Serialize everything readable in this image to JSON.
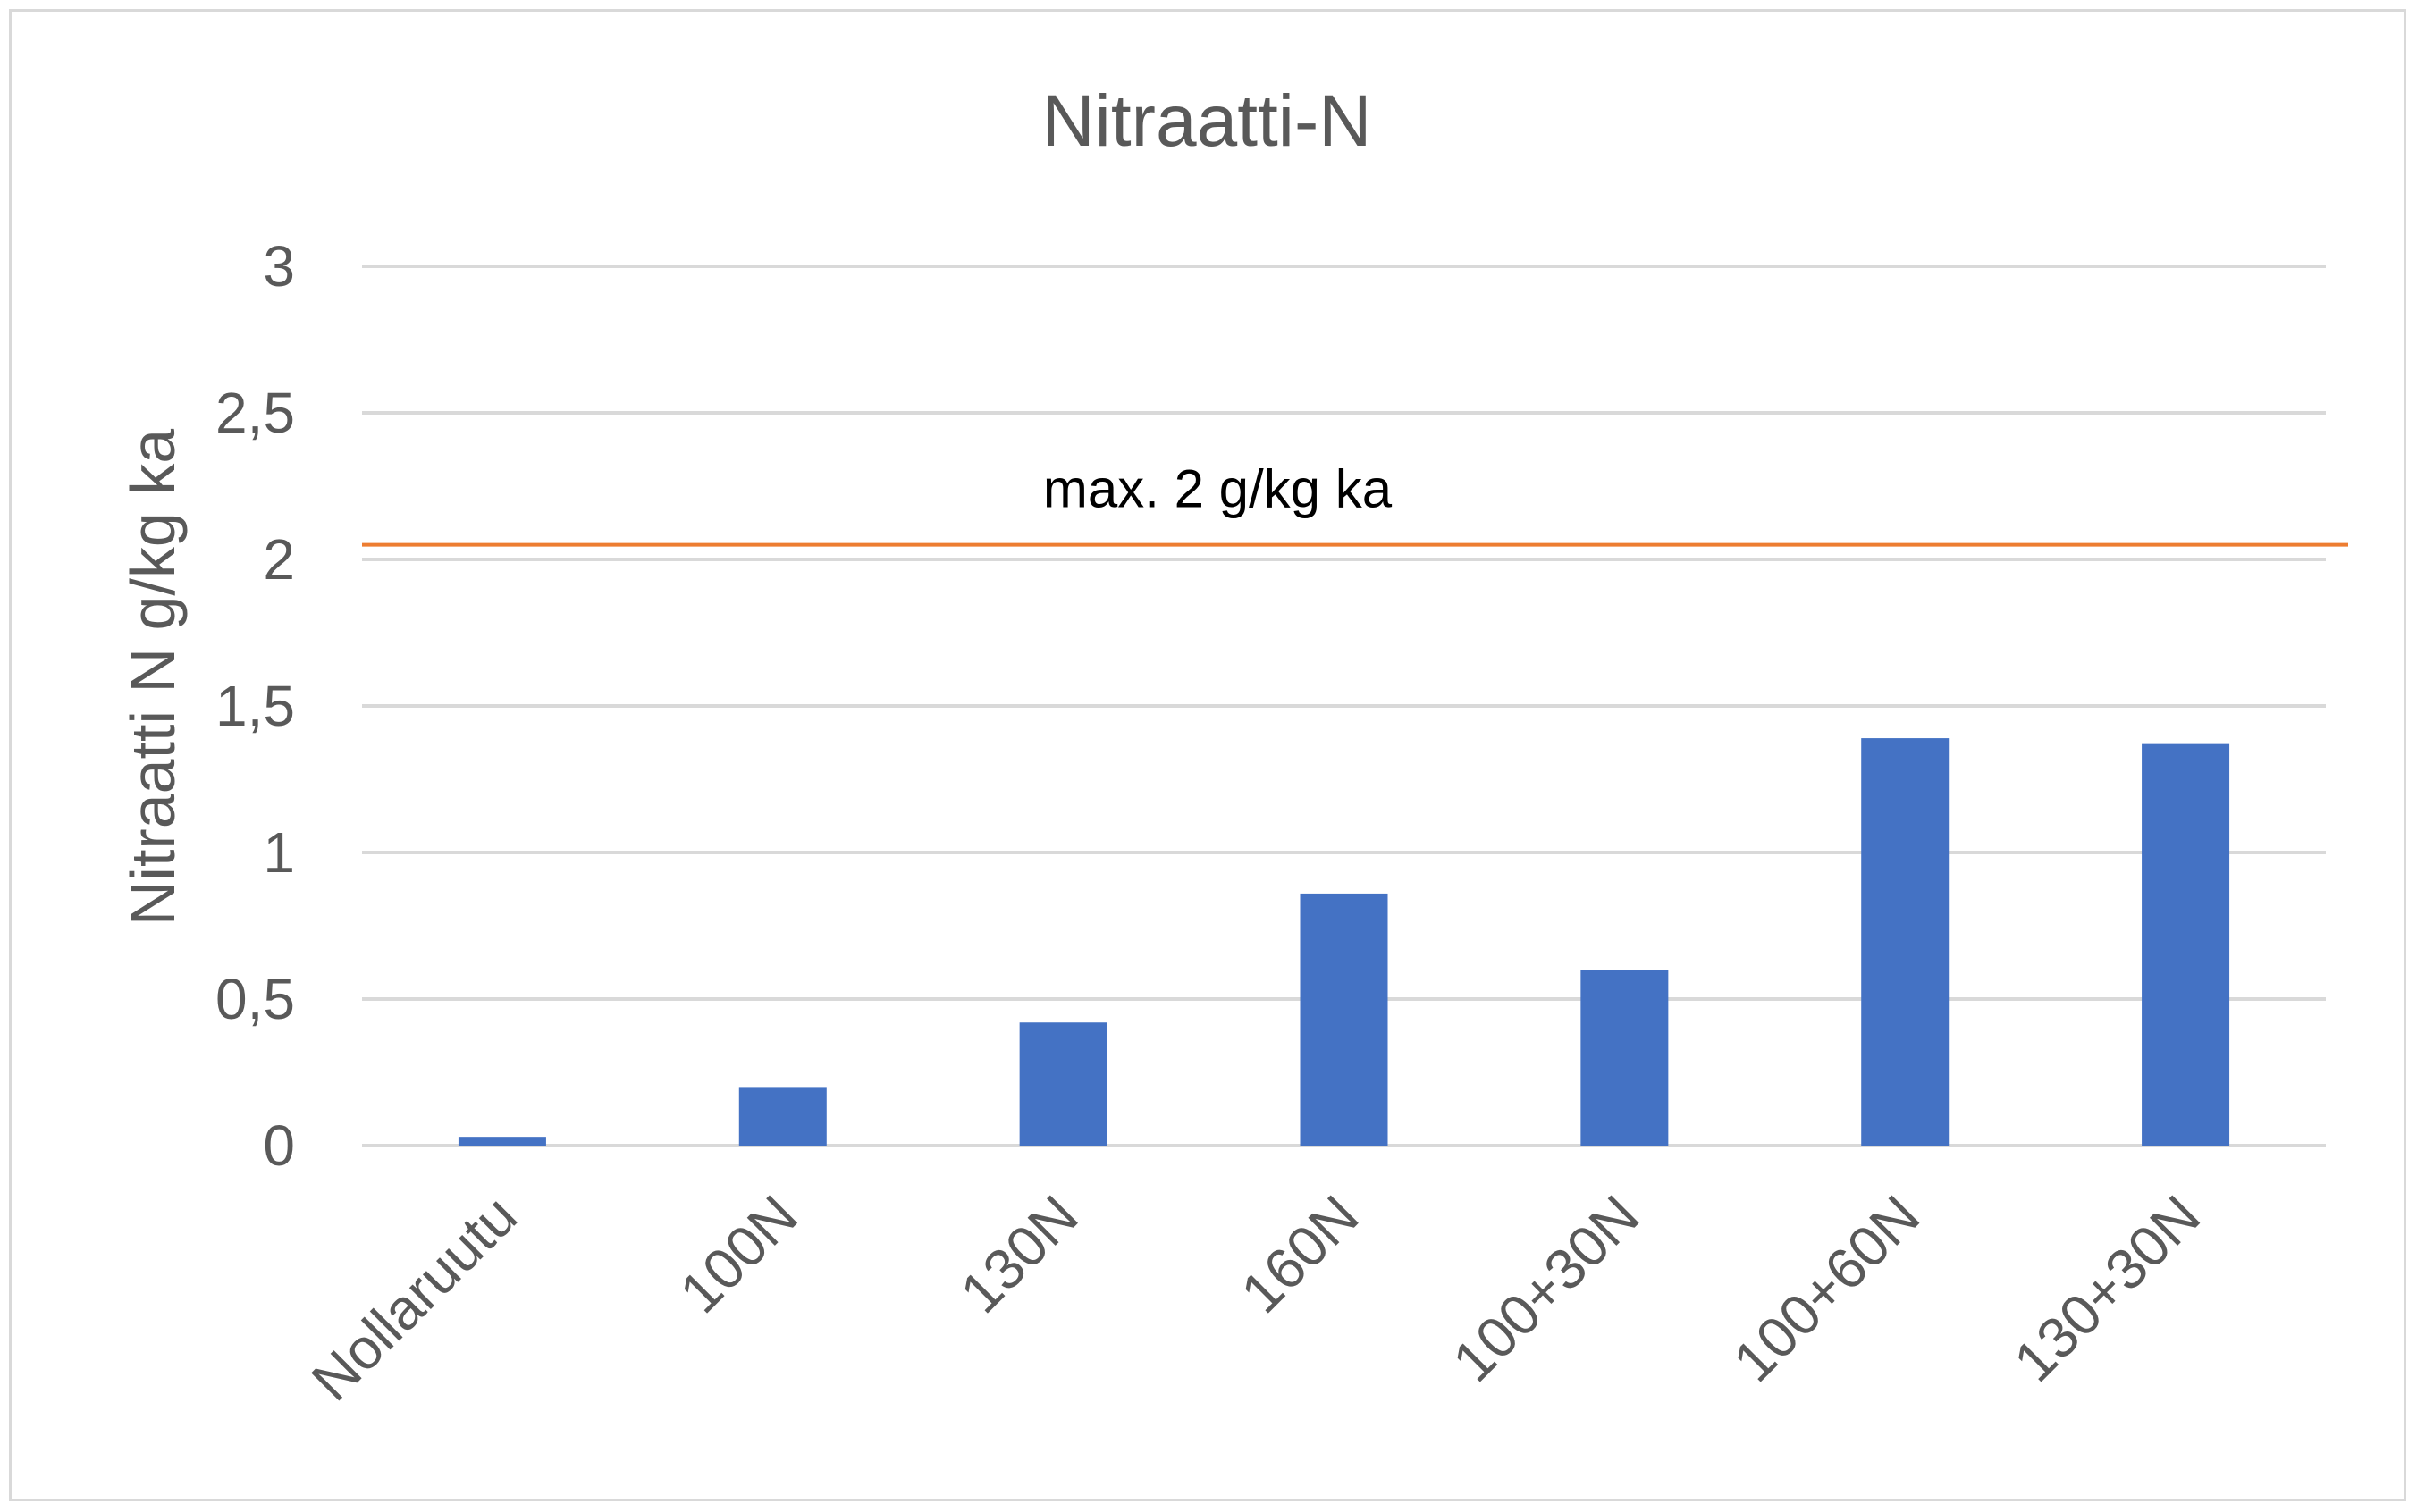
{
  "chart_data": {
    "type": "bar",
    "title": "Nitraatti-N",
    "xlabel": "",
    "ylabel": "Nitraatti N g/kg ka",
    "categories": [
      "Nollaruutu",
      "100N",
      "130N",
      "160N",
      "100+30N",
      "100+60N",
      "130+30N"
    ],
    "values": [
      0.03,
      0.2,
      0.42,
      0.86,
      0.6,
      1.39,
      1.37
    ],
    "ylim": [
      0,
      3
    ],
    "yticks": [
      0,
      0.5,
      1,
      1.5,
      2,
      2.5,
      3
    ],
    "ytick_labels": [
      "0",
      "0,5",
      "1",
      "1,5",
      "2",
      "2,5",
      "3"
    ],
    "grid": true,
    "legend": "none",
    "reference_line": {
      "value": 2.05,
      "label": "max. 2 g/kg ka",
      "color": "#ED7D31"
    },
    "colors": {
      "bar": "#4472C4",
      "grid": "#d9d9d9",
      "text": "#595959"
    }
  }
}
